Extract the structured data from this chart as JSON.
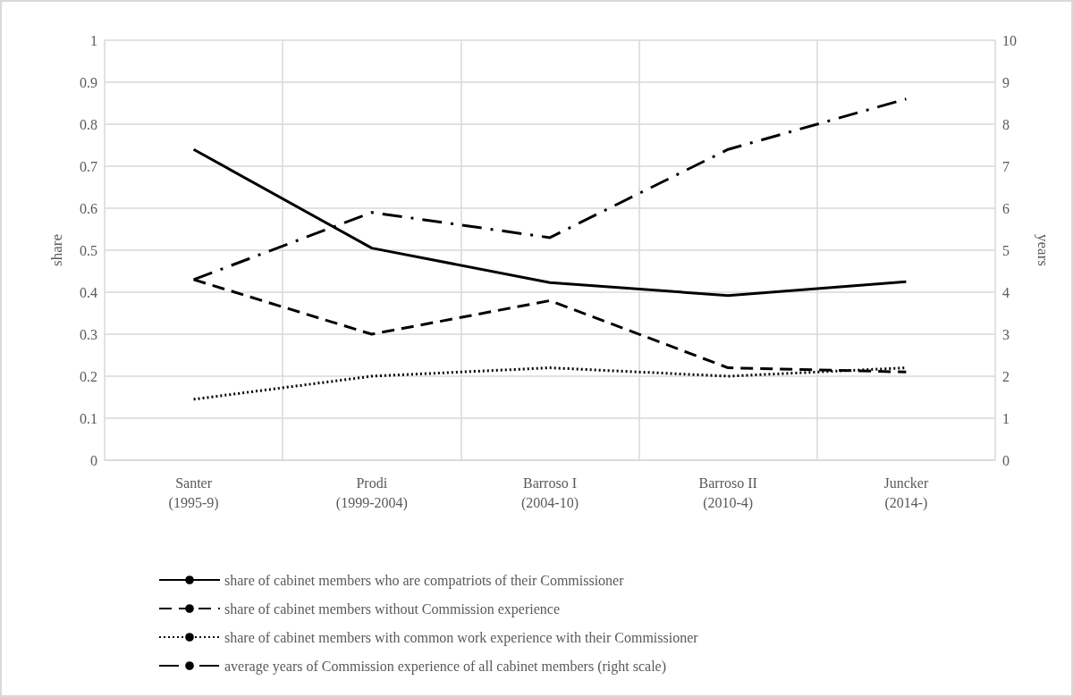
{
  "chart_data": {
    "type": "line",
    "ylabel": "share",
    "y2label": "years",
    "categories": [
      "Santer\n(1995-9)",
      "Prodi\n(1999-2004)",
      "Barroso I\n(2004-10)",
      "Barroso II\n(2010-4)",
      "Juncker\n(2014-)"
    ],
    "series": [
      {
        "name": "share of cabinet members who are compatriots of their Commissioner",
        "color": "#000000",
        "line_style": "solid",
        "values": [
          0.74,
          0.505,
          0.423,
          0.392,
          0.425
        ]
      },
      {
        "name": "share of cabinet members without Commission experience",
        "color": "#000000",
        "line_style": "dashed",
        "values": [
          0.43,
          0.3,
          0.38,
          0.22,
          0.21
        ]
      },
      {
        "name": "share of cabinet members with common work experience with their Commissioner",
        "color": "#000000",
        "line_style": "dotted",
        "values": [
          0.145,
          0.2,
          0.22,
          0.2,
          0.22
        ]
      },
      {
        "name": "average years of Commission experience of all cabinet members (right scale)",
        "color": "#000000",
        "line_style": "dashdot",
        "axis": "y2",
        "values": [
          4.3,
          5.9,
          5.3,
          7.4,
          8.6
        ]
      }
    ],
    "ylim": [
      0,
      1
    ],
    "yticks": [
      0,
      0.1,
      0.2,
      0.3,
      0.4,
      0.5,
      0.6,
      0.7,
      0.8,
      0.9,
      1
    ],
    "y2lim": [
      0,
      10
    ],
    "y2ticks": [
      0,
      1,
      2,
      3,
      4,
      5,
      6,
      7,
      8,
      9,
      10
    ],
    "grid": true,
    "legend": "bottom",
    "marker": "none"
  }
}
